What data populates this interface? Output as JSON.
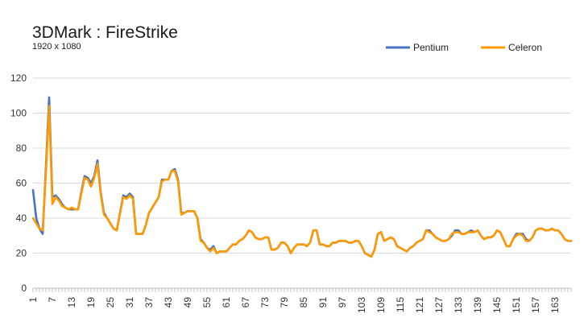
{
  "chart_data": {
    "type": "line",
    "title": "3DMark : FireStrike",
    "subtitle": "1920 x 1080",
    "xlabel": "",
    "ylabel": "",
    "ylim": [
      0,
      120
    ],
    "yticks": [
      0,
      20,
      40,
      60,
      80,
      100,
      120
    ],
    "xlim": [
      1,
      168
    ],
    "xticks": [
      1,
      7,
      13,
      19,
      25,
      31,
      37,
      43,
      49,
      55,
      61,
      67,
      73,
      79,
      85,
      91,
      97,
      103,
      109,
      115,
      121,
      127,
      133,
      139,
      145,
      151,
      157,
      163
    ],
    "grid": true,
    "legend_position": "top-right",
    "series": [
      {
        "name": "Pentium",
        "color": "#4472C4",
        "values": [
          56,
          40,
          34,
          31,
          69,
          109,
          52,
          53,
          51,
          48,
          46,
          45,
          45,
          45,
          45,
          55,
          64,
          63,
          60,
          64,
          73,
          55,
          43,
          40,
          37,
          34,
          33,
          43,
          53,
          52,
          54,
          52,
          31,
          31,
          31,
          36,
          43,
          46,
          49,
          52,
          62,
          62,
          62,
          67,
          68,
          62,
          43,
          43,
          44,
          44,
          44,
          40,
          28,
          26,
          23,
          22,
          24,
          20,
          21,
          21,
          21,
          23,
          25,
          25,
          27,
          28,
          30,
          33,
          32,
          29,
          28,
          28,
          29,
          29,
          22,
          22,
          23,
          26,
          26,
          24,
          20,
          23,
          25,
          25,
          25,
          24,
          26,
          33,
          33,
          25,
          25,
          24,
          24,
          26,
          26,
          27,
          27,
          27,
          26,
          26,
          27,
          27,
          24,
          20,
          19,
          18,
          22,
          31,
          32,
          27,
          28,
          29,
          28,
          24,
          23,
          22,
          21,
          23,
          24,
          26,
          27,
          28,
          33,
          33,
          31,
          29,
          28,
          27,
          27,
          28,
          30,
          33,
          33,
          31,
          31,
          32,
          33,
          32,
          33,
          30,
          28,
          29,
          29,
          30,
          33,
          32,
          28,
          24,
          24,
          28,
          31,
          31,
          31,
          28,
          27,
          29,
          33,
          34,
          34,
          33,
          33,
          34,
          33,
          33,
          31,
          28,
          27,
          27
        ]
      },
      {
        "name": "Celeron",
        "color": "#FF9900",
        "values": [
          40,
          37,
          34,
          33,
          66,
          104,
          48,
          52,
          50,
          47,
          46,
          45,
          46,
          45,
          45,
          54,
          63,
          62,
          58,
          63,
          71,
          54,
          42,
          40,
          37,
          34,
          33,
          43,
          52,
          51,
          53,
          51,
          31,
          31,
          31,
          36,
          43,
          46,
          49,
          52,
          61,
          62,
          62,
          67,
          67,
          61,
          42,
          43,
          44,
          44,
          44,
          40,
          27,
          26,
          23,
          21,
          23,
          20,
          21,
          21,
          21,
          23,
          25,
          25,
          27,
          28,
          30,
          33,
          32,
          29,
          28,
          28,
          29,
          29,
          22,
          22,
          23,
          26,
          26,
          24,
          20,
          23,
          25,
          25,
          25,
          24,
          26,
          33,
          33,
          25,
          25,
          24,
          24,
          26,
          26,
          27,
          27,
          27,
          26,
          26,
          27,
          27,
          24,
          20,
          19,
          18,
          22,
          31,
          32,
          27,
          28,
          29,
          28,
          24,
          23,
          22,
          21,
          23,
          24,
          26,
          27,
          28,
          33,
          32,
          31,
          29,
          28,
          27,
          27,
          28,
          31,
          32,
          32,
          31,
          31,
          32,
          32,
          32,
          33,
          30,
          28,
          29,
          29,
          30,
          33,
          32,
          28,
          24,
          24,
          28,
          30,
          31,
          30,
          27,
          27,
          29,
          33,
          34,
          34,
          33,
          33,
          34,
          33,
          33,
          31,
          28,
          27,
          27
        ]
      }
    ]
  }
}
